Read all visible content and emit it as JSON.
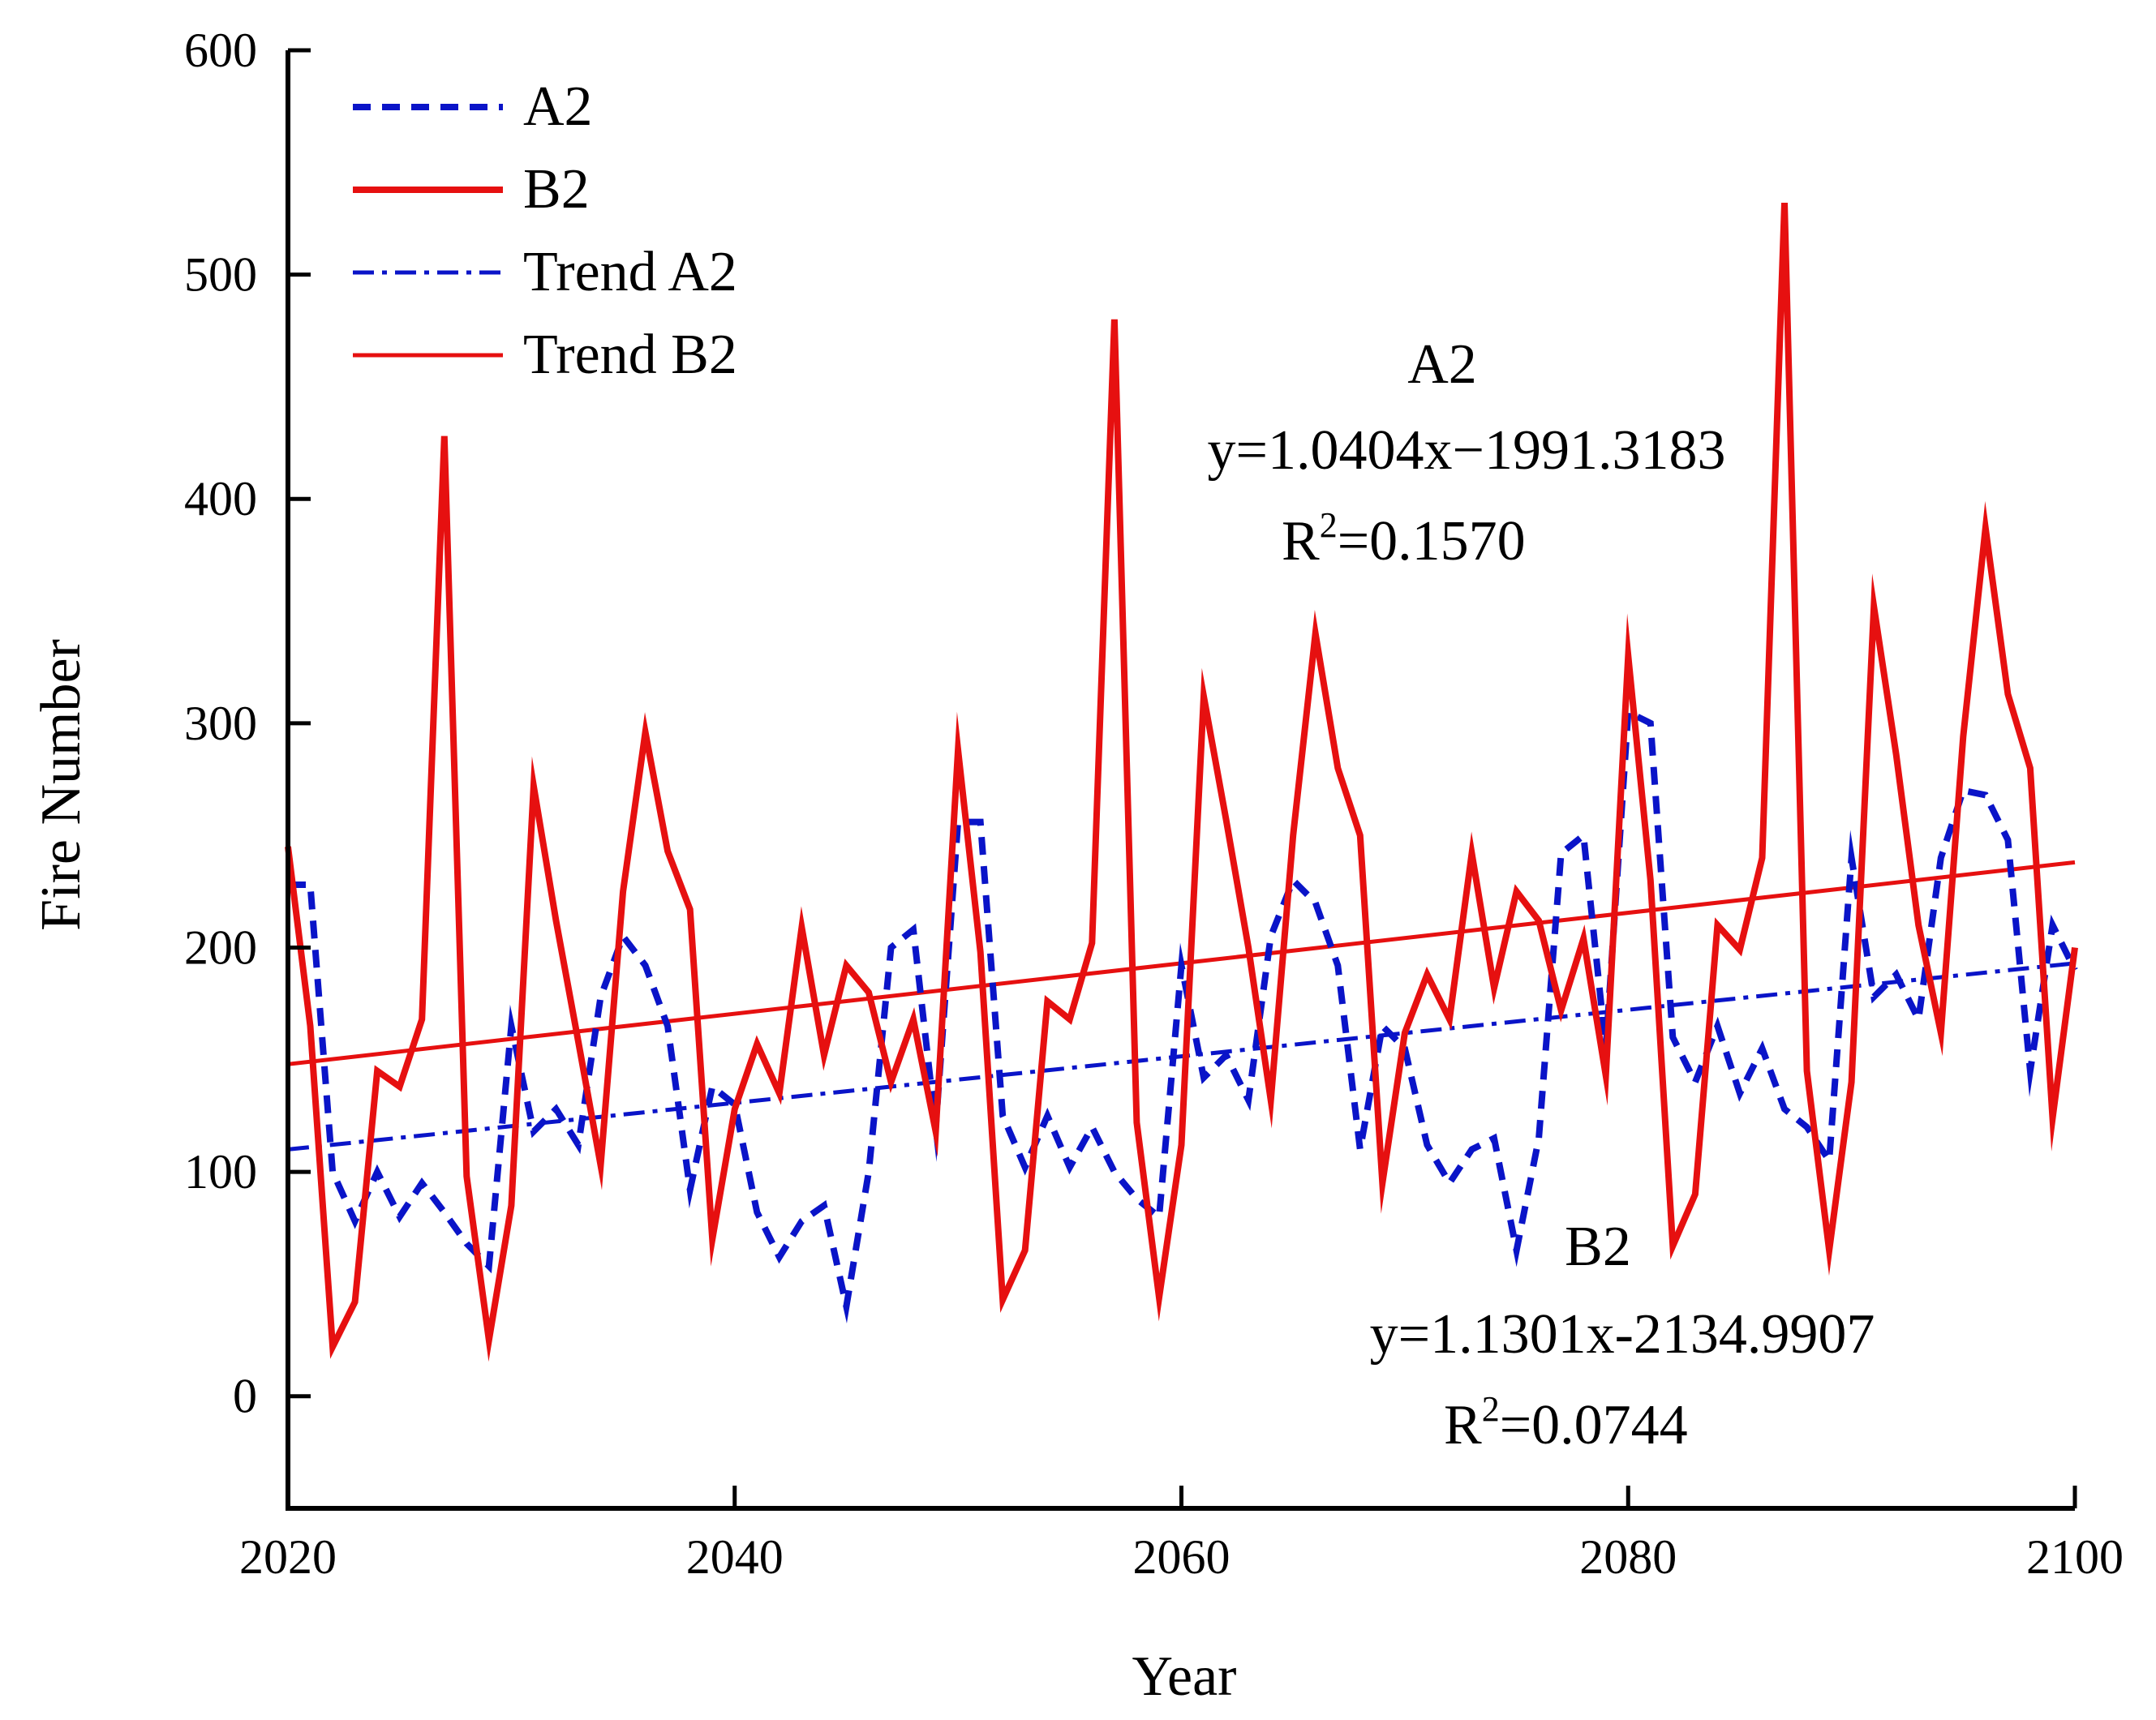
{
  "chart_data": {
    "type": "line",
    "title": "",
    "xlabel": "Year",
    "ylabel": "Fire Number",
    "xlim": [
      2020,
      2100
    ],
    "ylim": [
      -50,
      600
    ],
    "xticks": [
      "2020",
      "2040",
      "2060",
      "2080",
      "2100"
    ],
    "yticks": [
      "0",
      "100",
      "200",
      "300",
      "400",
      "500",
      "600"
    ],
    "legend_position": "top-left",
    "x": [
      2020,
      2021,
      2022,
      2023,
      2024,
      2025,
      2026,
      2027,
      2028,
      2029,
      2030,
      2031,
      2032,
      2033,
      2034,
      2035,
      2036,
      2037,
      2038,
      2039,
      2040,
      2041,
      2042,
      2043,
      2044,
      2045,
      2046,
      2047,
      2048,
      2049,
      2050,
      2051,
      2052,
      2053,
      2054,
      2055,
      2056,
      2057,
      2058,
      2059,
      2060,
      2061,
      2062,
      2063,
      2064,
      2065,
      2066,
      2067,
      2068,
      2069,
      2070,
      2071,
      2072,
      2073,
      2074,
      2075,
      2076,
      2077,
      2078,
      2079,
      2080,
      2081,
      2082,
      2083,
      2084,
      2085,
      2086,
      2087,
      2088,
      2089,
      2090,
      2091,
      2092,
      2093,
      2094,
      2095,
      2096,
      2097,
      2098,
      2099,
      2100
    ],
    "series": [
      {
        "name": "A2",
        "style": "dashed",
        "color": "#0a14c8",
        "values": [
          228,
          228,
          100,
          78,
          100,
          80,
          95,
          82,
          68,
          58,
          165,
          118,
          128,
          112,
          178,
          205,
          192,
          165,
          92,
          138,
          130,
          82,
          62,
          78,
          85,
          40,
          100,
          200,
          208,
          120,
          256,
          256,
          125,
          102,
          125,
          102,
          120,
          100,
          88,
          80,
          192,
          142,
          152,
          132,
          205,
          230,
          220,
          192,
          110,
          165,
          155,
          112,
          95,
          110,
          115,
          65,
          115,
          242,
          250,
          155,
          305,
          300,
          160,
          140,
          165,
          135,
          155,
          128,
          120,
          105,
          240,
          178,
          188,
          168,
          240,
          270,
          268,
          248,
          145,
          210,
          190
        ]
      },
      {
        "name": "B2",
        "style": "solid",
        "color": "#e61010",
        "values": [
          245,
          165,
          22,
          42,
          145,
          138,
          168,
          428,
          98,
          25,
          85,
          272,
          212,
          158,
          103,
          225,
          296,
          243,
          217,
          70,
          128,
          157,
          135,
          209,
          152,
          192,
          180,
          140,
          168,
          118,
          288,
          198,
          43,
          65,
          176,
          168,
          202,
          480,
          122,
          44,
          112,
          312,
          257,
          200,
          132,
          250,
          340,
          280,
          250,
          95,
          162,
          188,
          168,
          242,
          182,
          225,
          212,
          172,
          204,
          143,
          330,
          230,
          67,
          90,
          210,
          199,
          240,
          532,
          145,
          65,
          140,
          352,
          286,
          210,
          162,
          294,
          387,
          313,
          280,
          124,
          200
        ]
      }
    ],
    "trends": [
      {
        "name": "Trend A2",
        "style": "dashdot",
        "color": "#0a14c8",
        "x": [
          2020,
          2100
        ],
        "values": [
          110,
          193
        ]
      },
      {
        "name": "Trend B2",
        "style": "solid",
        "color": "#e61010",
        "x": [
          2020,
          2100
        ],
        "values": [
          148,
          238
        ]
      }
    ],
    "annotations": {
      "a2": {
        "name": "A2",
        "equation": "y=1.0404x−1991.3183",
        "r2_prefix": "R",
        "r2_exp": "2",
        "r2_value": "=0.1570"
      },
      "b2": {
        "name": "B2",
        "equation": "y=1.1301x-2134.9907",
        "r2_prefix": "R",
        "r2_exp": "2",
        "r2_value": "=0.0744"
      }
    }
  }
}
